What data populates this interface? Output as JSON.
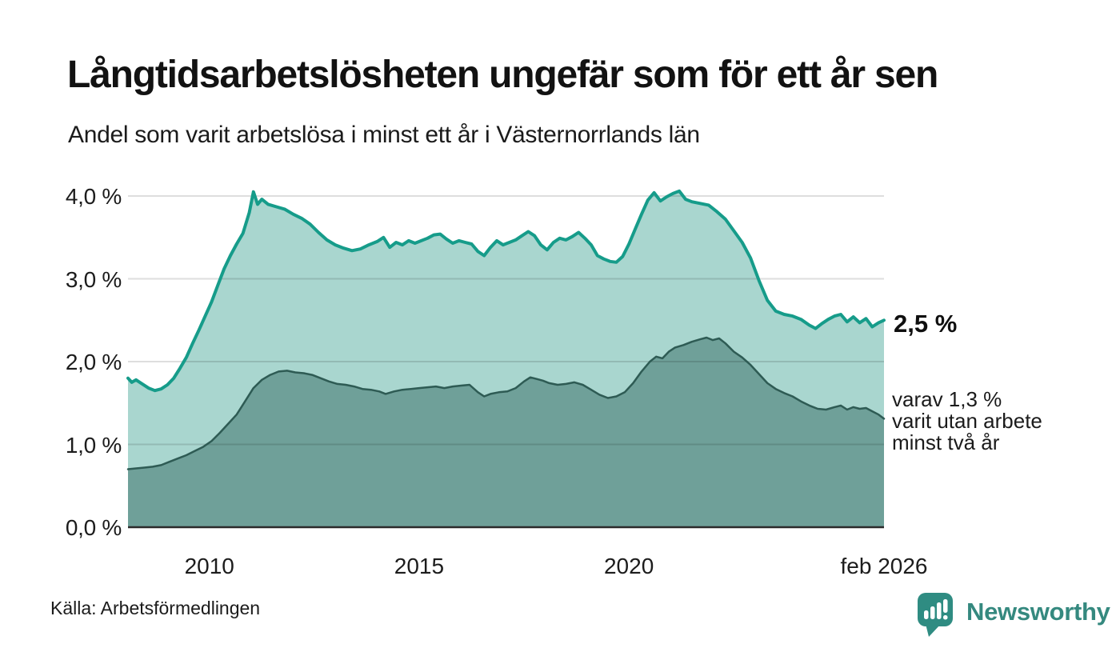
{
  "header": {
    "title": "Långtidsarbetslösheten ungefär som för ett år sen",
    "subtitle": "Andel som varit arbetslösa i minst ett år i Västernorrlands län"
  },
  "annotations": {
    "latest_total": "2,5 %",
    "twoyear_line1": "varav 1,3 %",
    "twoyear_line2": "varit utan arbete",
    "twoyear_line3": "minst två år"
  },
  "footer": {
    "source": "Källa: Arbetsförmedlingen",
    "brand": "Newsworthy"
  },
  "colors": {
    "accent_teal": "#169c8a",
    "area_light": "#a9d6cf",
    "area_dark": "#6fa099",
    "line_dark": "#2e5b54",
    "grid": "rgba(0,0,0,0.13)",
    "axis": "#2b2b2b",
    "brand_teal": "#35897f",
    "badge_teal": "#2f8c82"
  },
  "chart_data": {
    "type": "area",
    "title": "Långtidsarbetslösheten ungefär som för ett år sen",
    "subtitle": "Andel som varit arbetslösa i minst ett år i Västernorrlands län",
    "unit": "%",
    "grid": true,
    "legend_position": "end-of-line labels (right margin)",
    "xlim": [
      2008.06,
      2026.08
    ],
    "ylim": [
      0,
      4.3
    ],
    "yticks": [
      {
        "value": 4.0,
        "label": "4,0 %"
      },
      {
        "value": 3.0,
        "label": "3,0 %"
      },
      {
        "value": 2.0,
        "label": "2,0 %"
      },
      {
        "value": 1.0,
        "label": "1,0 %"
      },
      {
        "value": 0.0,
        "label": "0,0 %"
      }
    ],
    "xticks": [
      {
        "x": 2010,
        "label": "2010"
      },
      {
        "x": 2015,
        "label": "2015"
      },
      {
        "x": 2020,
        "label": "2020"
      },
      {
        "x": 2026.08,
        "label": "feb 2026"
      }
    ],
    "series": [
      {
        "name": "Andel som varit arbetslösa i minst ett år",
        "end_label": "2,5 %",
        "end_value": 2.5,
        "points": [
          [
            2008.06,
            1.8
          ],
          [
            2008.15,
            1.75
          ],
          [
            2008.25,
            1.78
          ],
          [
            2008.4,
            1.73
          ],
          [
            2008.55,
            1.68
          ],
          [
            2008.7,
            1.65
          ],
          [
            2008.85,
            1.67
          ],
          [
            2009.0,
            1.72
          ],
          [
            2009.15,
            1.8
          ],
          [
            2009.3,
            1.92
          ],
          [
            2009.45,
            2.05
          ],
          [
            2009.6,
            2.22
          ],
          [
            2009.75,
            2.38
          ],
          [
            2009.9,
            2.55
          ],
          [
            2010.05,
            2.72
          ],
          [
            2010.2,
            2.92
          ],
          [
            2010.35,
            3.12
          ],
          [
            2010.5,
            3.28
          ],
          [
            2010.65,
            3.42
          ],
          [
            2010.8,
            3.55
          ],
          [
            2010.95,
            3.8
          ],
          [
            2011.05,
            4.05
          ],
          [
            2011.15,
            3.9
          ],
          [
            2011.25,
            3.96
          ],
          [
            2011.4,
            3.9
          ],
          [
            2011.6,
            3.87
          ],
          [
            2011.8,
            3.84
          ],
          [
            2012.0,
            3.78
          ],
          [
            2012.2,
            3.73
          ],
          [
            2012.4,
            3.66
          ],
          [
            2012.6,
            3.56
          ],
          [
            2012.8,
            3.47
          ],
          [
            2013.0,
            3.41
          ],
          [
            2013.2,
            3.37
          ],
          [
            2013.4,
            3.34
          ],
          [
            2013.6,
            3.36
          ],
          [
            2013.8,
            3.41
          ],
          [
            2014.0,
            3.45
          ],
          [
            2014.15,
            3.5
          ],
          [
            2014.3,
            3.38
          ],
          [
            2014.45,
            3.44
          ],
          [
            2014.6,
            3.41
          ],
          [
            2014.75,
            3.46
          ],
          [
            2014.9,
            3.43
          ],
          [
            2015.05,
            3.46
          ],
          [
            2015.2,
            3.49
          ],
          [
            2015.35,
            3.53
          ],
          [
            2015.5,
            3.54
          ],
          [
            2015.65,
            3.48
          ],
          [
            2015.8,
            3.43
          ],
          [
            2015.95,
            3.46
          ],
          [
            2016.1,
            3.44
          ],
          [
            2016.25,
            3.42
          ],
          [
            2016.4,
            3.33
          ],
          [
            2016.55,
            3.28
          ],
          [
            2016.7,
            3.38
          ],
          [
            2016.85,
            3.46
          ],
          [
            2017.0,
            3.41
          ],
          [
            2017.15,
            3.44
          ],
          [
            2017.3,
            3.47
          ],
          [
            2017.45,
            3.52
          ],
          [
            2017.6,
            3.57
          ],
          [
            2017.75,
            3.52
          ],
          [
            2017.9,
            3.41
          ],
          [
            2018.05,
            3.35
          ],
          [
            2018.2,
            3.44
          ],
          [
            2018.35,
            3.49
          ],
          [
            2018.5,
            3.47
          ],
          [
            2018.65,
            3.51
          ],
          [
            2018.8,
            3.56
          ],
          [
            2018.95,
            3.49
          ],
          [
            2019.1,
            3.41
          ],
          [
            2019.25,
            3.28
          ],
          [
            2019.4,
            3.24
          ],
          [
            2019.55,
            3.21
          ],
          [
            2019.7,
            3.2
          ],
          [
            2019.85,
            3.27
          ],
          [
            2020.0,
            3.42
          ],
          [
            2020.15,
            3.6
          ],
          [
            2020.3,
            3.78
          ],
          [
            2020.45,
            3.95
          ],
          [
            2020.6,
            4.04
          ],
          [
            2020.75,
            3.94
          ],
          [
            2020.9,
            3.99
          ],
          [
            2021.05,
            4.03
          ],
          [
            2021.2,
            4.06
          ],
          [
            2021.35,
            3.96
          ],
          [
            2021.5,
            3.93
          ],
          [
            2021.7,
            3.91
          ],
          [
            2021.9,
            3.89
          ],
          [
            2022.1,
            3.81
          ],
          [
            2022.3,
            3.72
          ],
          [
            2022.5,
            3.58
          ],
          [
            2022.7,
            3.44
          ],
          [
            2022.9,
            3.25
          ],
          [
            2023.1,
            2.98
          ],
          [
            2023.3,
            2.74
          ],
          [
            2023.5,
            2.61
          ],
          [
            2023.7,
            2.57
          ],
          [
            2023.9,
            2.55
          ],
          [
            2024.1,
            2.51
          ],
          [
            2024.3,
            2.44
          ],
          [
            2024.45,
            2.4
          ],
          [
            2024.6,
            2.46
          ],
          [
            2024.75,
            2.51
          ],
          [
            2024.9,
            2.55
          ],
          [
            2025.05,
            2.57
          ],
          [
            2025.2,
            2.48
          ],
          [
            2025.35,
            2.54
          ],
          [
            2025.5,
            2.47
          ],
          [
            2025.65,
            2.52
          ],
          [
            2025.8,
            2.42
          ],
          [
            2025.95,
            2.47
          ],
          [
            2026.08,
            2.5
          ]
        ]
      },
      {
        "name": "varav utan arbete minst två år",
        "end_label": "varav 1,3 % varit utan arbete minst två år",
        "end_value": 1.3,
        "points": [
          [
            2008.06,
            0.7
          ],
          [
            2008.25,
            0.71
          ],
          [
            2008.45,
            0.72
          ],
          [
            2008.65,
            0.73
          ],
          [
            2008.85,
            0.75
          ],
          [
            2009.05,
            0.79
          ],
          [
            2009.25,
            0.83
          ],
          [
            2009.45,
            0.87
          ],
          [
            2009.65,
            0.92
          ],
          [
            2009.85,
            0.97
          ],
          [
            2010.05,
            1.04
          ],
          [
            2010.25,
            1.14
          ],
          [
            2010.45,
            1.25
          ],
          [
            2010.65,
            1.36
          ],
          [
            2010.85,
            1.52
          ],
          [
            2011.05,
            1.68
          ],
          [
            2011.25,
            1.78
          ],
          [
            2011.45,
            1.84
          ],
          [
            2011.65,
            1.88
          ],
          [
            2011.85,
            1.89
          ],
          [
            2012.05,
            1.87
          ],
          [
            2012.25,
            1.86
          ],
          [
            2012.45,
            1.84
          ],
          [
            2012.65,
            1.8
          ],
          [
            2012.85,
            1.76
          ],
          [
            2013.05,
            1.73
          ],
          [
            2013.25,
            1.72
          ],
          [
            2013.45,
            1.7
          ],
          [
            2013.65,
            1.67
          ],
          [
            2013.85,
            1.66
          ],
          [
            2014.05,
            1.64
          ],
          [
            2014.2,
            1.61
          ],
          [
            2014.4,
            1.64
          ],
          [
            2014.6,
            1.66
          ],
          [
            2014.8,
            1.67
          ],
          [
            2015.0,
            1.68
          ],
          [
            2015.2,
            1.69
          ],
          [
            2015.4,
            1.7
          ],
          [
            2015.6,
            1.68
          ],
          [
            2015.8,
            1.7
          ],
          [
            2016.0,
            1.71
          ],
          [
            2016.2,
            1.72
          ],
          [
            2016.4,
            1.63
          ],
          [
            2016.55,
            1.58
          ],
          [
            2016.7,
            1.61
          ],
          [
            2016.9,
            1.63
          ],
          [
            2017.1,
            1.64
          ],
          [
            2017.3,
            1.68
          ],
          [
            2017.5,
            1.76
          ],
          [
            2017.65,
            1.81
          ],
          [
            2017.8,
            1.79
          ],
          [
            2017.95,
            1.77
          ],
          [
            2018.1,
            1.74
          ],
          [
            2018.3,
            1.72
          ],
          [
            2018.5,
            1.73
          ],
          [
            2018.7,
            1.75
          ],
          [
            2018.9,
            1.72
          ],
          [
            2019.1,
            1.66
          ],
          [
            2019.3,
            1.6
          ],
          [
            2019.5,
            1.56
          ],
          [
            2019.7,
            1.58
          ],
          [
            2019.9,
            1.63
          ],
          [
            2020.1,
            1.74
          ],
          [
            2020.3,
            1.88
          ],
          [
            2020.5,
            2.0
          ],
          [
            2020.65,
            2.06
          ],
          [
            2020.8,
            2.04
          ],
          [
            2020.95,
            2.12
          ],
          [
            2021.1,
            2.17
          ],
          [
            2021.3,
            2.2
          ],
          [
            2021.5,
            2.24
          ],
          [
            2021.7,
            2.27
          ],
          [
            2021.85,
            2.29
          ],
          [
            2022.0,
            2.26
          ],
          [
            2022.15,
            2.28
          ],
          [
            2022.3,
            2.22
          ],
          [
            2022.5,
            2.12
          ],
          [
            2022.7,
            2.05
          ],
          [
            2022.9,
            1.96
          ],
          [
            2023.1,
            1.85
          ],
          [
            2023.3,
            1.74
          ],
          [
            2023.5,
            1.67
          ],
          [
            2023.7,
            1.62
          ],
          [
            2023.9,
            1.58
          ],
          [
            2024.1,
            1.52
          ],
          [
            2024.3,
            1.47
          ],
          [
            2024.5,
            1.43
          ],
          [
            2024.7,
            1.42
          ],
          [
            2024.9,
            1.45
          ],
          [
            2025.05,
            1.47
          ],
          [
            2025.2,
            1.42
          ],
          [
            2025.35,
            1.45
          ],
          [
            2025.5,
            1.43
          ],
          [
            2025.65,
            1.44
          ],
          [
            2025.8,
            1.4
          ],
          [
            2025.95,
            1.36
          ],
          [
            2026.08,
            1.31
          ]
        ]
      }
    ]
  }
}
